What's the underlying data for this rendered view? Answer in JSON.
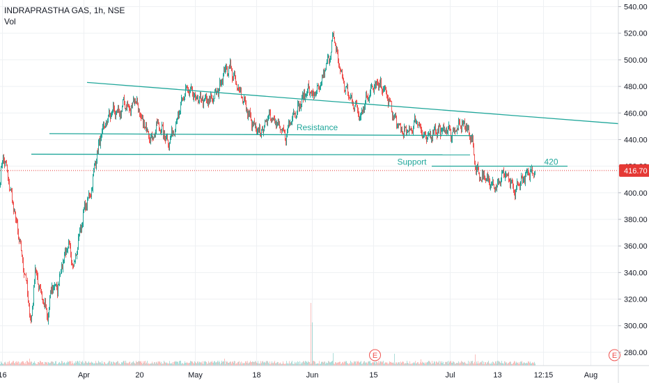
{
  "header": {
    "title": "INDRAPRASTHA GAS, 1h, NSE",
    "subtitle": "Vol"
  },
  "colors": {
    "up": "#26a69a",
    "down": "#ef5350",
    "trend": "#1fa69a",
    "price_line": "#e53935",
    "grid": "#eef0f3",
    "axis_text": "#131722"
  },
  "chart_data": {
    "type": "candlestick",
    "ylim": [
      270,
      545
    ],
    "y_ticks": [
      "540.00",
      "520.00",
      "500.00",
      "480.00",
      "460.00",
      "440.00",
      "420.00",
      "400.00",
      "380.00",
      "360.00",
      "340.00",
      "320.00",
      "300.00",
      "280.00"
    ],
    "y_tick_values": [
      540,
      520,
      500,
      480,
      460,
      440,
      420,
      400,
      380,
      360,
      340,
      320,
      300,
      280
    ],
    "x_ticks": [
      "16",
      "Apr",
      "20",
      "May",
      "18",
      "Jun",
      "15",
      "Jul",
      "13",
      "12:15",
      "Aug"
    ],
    "x_tick_index": [
      3,
      120,
      200,
      280,
      368,
      448,
      536,
      646,
      714,
      780,
      848
    ],
    "last_price": {
      "label": "416.70",
      "value": 416.7
    },
    "anchors": [
      [
        0,
        410
      ],
      [
        4,
        428
      ],
      [
        9,
        418
      ],
      [
        15,
        400
      ],
      [
        22,
        380
      ],
      [
        30,
        355
      ],
      [
        38,
        330
      ],
      [
        44,
        300
      ],
      [
        50,
        342
      ],
      [
        56,
        330
      ],
      [
        62,
        318
      ],
      [
        68,
        305
      ],
      [
        74,
        330
      ],
      [
        82,
        328
      ],
      [
        90,
        350
      ],
      [
        98,
        360
      ],
      [
        106,
        345
      ],
      [
        114,
        370
      ],
      [
        122,
        390
      ],
      [
        130,
        400
      ],
      [
        138,
        428
      ],
      [
        146,
        445
      ],
      [
        154,
        455
      ],
      [
        162,
        462
      ],
      [
        170,
        458
      ],
      [
        178,
        468
      ],
      [
        186,
        462
      ],
      [
        194,
        472
      ],
      [
        202,
        455
      ],
      [
        210,
        448
      ],
      [
        218,
        440
      ],
      [
        226,
        452
      ],
      [
        234,
        445
      ],
      [
        242,
        438
      ],
      [
        250,
        448
      ],
      [
        258,
        462
      ],
      [
        266,
        478
      ],
      [
        274,
        475
      ],
      [
        282,
        470
      ],
      [
        290,
        470
      ],
      [
        298,
        468
      ],
      [
        306,
        472
      ],
      [
        314,
        478
      ],
      [
        322,
        492
      ],
      [
        330,
        495
      ],
      [
        338,
        482
      ],
      [
        346,
        475
      ],
      [
        354,
        462
      ],
      [
        362,
        452
      ],
      [
        370,
        445
      ],
      [
        378,
        448
      ],
      [
        386,
        460
      ],
      [
        394,
        455
      ],
      [
        402,
        448
      ],
      [
        410,
        442
      ],
      [
        418,
        458
      ],
      [
        426,
        462
      ],
      [
        434,
        470
      ],
      [
        442,
        478
      ],
      [
        450,
        472
      ],
      [
        458,
        478
      ],
      [
        466,
        492
      ],
      [
        474,
        505
      ],
      [
        478,
        518
      ],
      [
        486,
        498
      ],
      [
        494,
        480
      ],
      [
        502,
        472
      ],
      [
        510,
        465
      ],
      [
        518,
        458
      ],
      [
        526,
        472
      ],
      [
        534,
        478
      ],
      [
        542,
        482
      ],
      [
        550,
        478
      ],
      [
        558,
        470
      ],
      [
        566,
        455
      ],
      [
        574,
        448
      ],
      [
        582,
        445
      ],
      [
        590,
        448
      ],
      [
        598,
        455
      ],
      [
        604,
        448
      ],
      [
        610,
        440
      ],
      [
        616,
        442
      ],
      [
        624,
        448
      ],
      [
        632,
        446
      ],
      [
        640,
        448
      ],
      [
        648,
        445
      ],
      [
        656,
        448
      ],
      [
        664,
        452
      ],
      [
        672,
        447
      ],
      [
        678,
        438
      ],
      [
        682,
        420
      ],
      [
        690,
        412
      ],
      [
        698,
        410
      ],
      [
        706,
        408
      ],
      [
        714,
        404
      ],
      [
        722,
        415
      ],
      [
        730,
        410
      ],
      [
        738,
        400
      ],
      [
        746,
        408
      ],
      [
        754,
        412
      ],
      [
        762,
        416
      ],
      [
        768,
        416.7
      ]
    ],
    "volume_spikes": [
      {
        "index": 446,
        "ratio": 0.9
      },
      {
        "index": 448,
        "ratio": 0.62
      },
      {
        "index": 478,
        "ratio": 0.18
      },
      {
        "index": 566,
        "ratio": 0.17
      },
      {
        "index": 682,
        "ratio": 0.16
      },
      {
        "index": 322,
        "ratio": 0.1
      },
      {
        "index": 42,
        "ratio": 0.1
      },
      {
        "index": 604,
        "ratio": 0.09
      }
    ],
    "trend_lines": [
      {
        "name": "upper",
        "p1": [
          125,
          483
        ],
        "p2": [
          888,
          452
        ]
      },
      {
        "name": "resistance",
        "p1": [
          71,
          444.5
        ],
        "p2": [
          678,
          443
        ]
      },
      {
        "name": "support",
        "p1": [
          45,
          429
        ],
        "p2": [
          675,
          428.5
        ]
      },
      {
        "name": "level-420",
        "p1": [
          620,
          420
        ],
        "p2": [
          815,
          420
        ]
      }
    ],
    "annotations": [
      {
        "text": "Resistance",
        "index": 455,
        "price": 447
      },
      {
        "text": "Support",
        "index": 591,
        "price": 421
      },
      {
        "text": "420",
        "index": 791,
        "price": 421
      }
    ],
    "event_markers": [
      {
        "text": "E",
        "index": 538
      },
      {
        "text": "E",
        "index": 882
      }
    ]
  }
}
